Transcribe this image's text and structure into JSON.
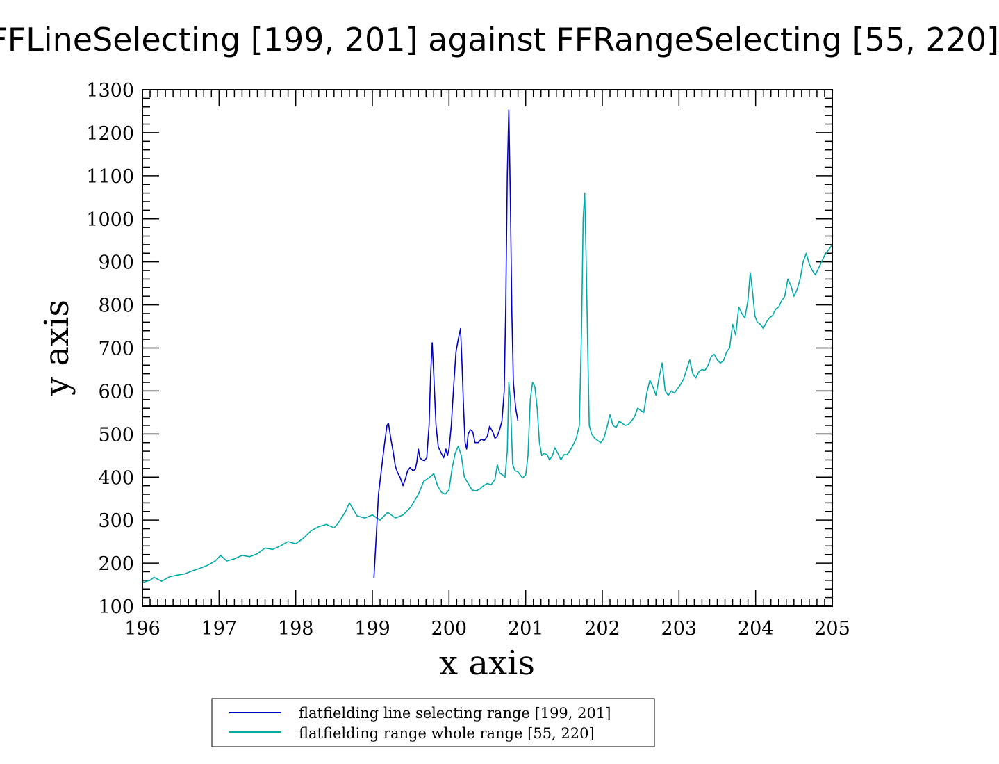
{
  "chart_data": {
    "type": "line",
    "title": "FFLineSelecting [199, 201] against FFRangeSelecting [55, 220]",
    "xlabel": "x axis",
    "ylabel": "y axis",
    "xlim": [
      196,
      205
    ],
    "ylim": [
      100,
      1300
    ],
    "xticks": [
      "196",
      "197",
      "198",
      "199",
      "200",
      "201",
      "202",
      "203",
      "204",
      "205"
    ],
    "yticks": [
      "100",
      "200",
      "300",
      "400",
      "500",
      "600",
      "700",
      "800",
      "900",
      "1000",
      "1100",
      "1200",
      "1300"
    ],
    "legend_position": "bottom-center",
    "grid": false,
    "series": [
      {
        "name": "flatfielding line selecting range [199, 201]",
        "color": "#0000cc",
        "points": [
          [
            199.02,
            165
          ],
          [
            199.05,
            260
          ],
          [
            199.08,
            360
          ],
          [
            199.12,
            420
          ],
          [
            199.16,
            480
          ],
          [
            199.19,
            520
          ],
          [
            199.21,
            525
          ],
          [
            199.24,
            490
          ],
          [
            199.27,
            460
          ],
          [
            199.3,
            425
          ],
          [
            199.33,
            410
          ],
          [
            199.36,
            400
          ],
          [
            199.4,
            380
          ],
          [
            199.43,
            395
          ],
          [
            199.46,
            415
          ],
          [
            199.49,
            422
          ],
          [
            199.53,
            415
          ],
          [
            199.56,
            418
          ],
          [
            199.58,
            435
          ],
          [
            199.6,
            465
          ],
          [
            199.62,
            445
          ],
          [
            199.65,
            440
          ],
          [
            199.68,
            438
          ],
          [
            199.71,
            445
          ],
          [
            199.74,
            520
          ],
          [
            199.76,
            640
          ],
          [
            199.78,
            712
          ],
          [
            199.8,
            640
          ],
          [
            199.83,
            520
          ],
          [
            199.86,
            470
          ],
          [
            199.9,
            455
          ],
          [
            199.93,
            445
          ],
          [
            199.96,
            465
          ],
          [
            199.98,
            450
          ],
          [
            200.0,
            465
          ],
          [
            200.03,
            520
          ],
          [
            200.06,
            610
          ],
          [
            200.09,
            690
          ],
          [
            200.12,
            720
          ],
          [
            200.15,
            745
          ],
          [
            200.17,
            660
          ],
          [
            200.19,
            560
          ],
          [
            200.21,
            480
          ],
          [
            200.23,
            465
          ],
          [
            200.25,
            500
          ],
          [
            200.28,
            510
          ],
          [
            200.31,
            505
          ],
          [
            200.34,
            480
          ],
          [
            200.38,
            480
          ],
          [
            200.42,
            488
          ],
          [
            200.46,
            485
          ],
          [
            200.5,
            495
          ],
          [
            200.53,
            518
          ],
          [
            200.57,
            505
          ],
          [
            200.6,
            490
          ],
          [
            200.63,
            495
          ],
          [
            200.66,
            510
          ],
          [
            200.69,
            530
          ],
          [
            200.72,
            600
          ],
          [
            200.74,
            800
          ],
          [
            200.76,
            1100
          ],
          [
            200.78,
            1253
          ],
          [
            200.8,
            1050
          ],
          [
            200.82,
            780
          ],
          [
            200.84,
            620
          ],
          [
            200.87,
            560
          ],
          [
            200.9,
            530
          ]
        ]
      },
      {
        "name": "flatfielding range whole range [55, 220]",
        "color": "#00aaaa",
        "points": [
          [
            196.0,
            155
          ],
          [
            196.1,
            160
          ],
          [
            196.15,
            167
          ],
          [
            196.25,
            158
          ],
          [
            196.35,
            168
          ],
          [
            196.45,
            172
          ],
          [
            196.55,
            175
          ],
          [
            196.65,
            182
          ],
          [
            196.75,
            188
          ],
          [
            196.85,
            195
          ],
          [
            196.95,
            205
          ],
          [
            197.02,
            218
          ],
          [
            197.1,
            205
          ],
          [
            197.2,
            210
          ],
          [
            197.3,
            218
          ],
          [
            197.4,
            215
          ],
          [
            197.5,
            222
          ],
          [
            197.6,
            235
          ],
          [
            197.7,
            232
          ],
          [
            197.8,
            240
          ],
          [
            197.9,
            250
          ],
          [
            198.0,
            245
          ],
          [
            198.1,
            258
          ],
          [
            198.2,
            275
          ],
          [
            198.3,
            285
          ],
          [
            198.4,
            290
          ],
          [
            198.5,
            282
          ],
          [
            198.55,
            292
          ],
          [
            198.65,
            320
          ],
          [
            198.7,
            340
          ],
          [
            198.8,
            310
          ],
          [
            198.9,
            305
          ],
          [
            199.0,
            312
          ],
          [
            199.1,
            300
          ],
          [
            199.2,
            318
          ],
          [
            199.3,
            305
          ],
          [
            199.4,
            312
          ],
          [
            199.5,
            330
          ],
          [
            199.6,
            360
          ],
          [
            199.67,
            390
          ],
          [
            199.75,
            400
          ],
          [
            199.8,
            408
          ],
          [
            199.85,
            380
          ],
          [
            199.9,
            365
          ],
          [
            199.95,
            360
          ],
          [
            200.0,
            370
          ],
          [
            200.04,
            420
          ],
          [
            200.08,
            455
          ],
          [
            200.12,
            472
          ],
          [
            200.16,
            450
          ],
          [
            200.2,
            400
          ],
          [
            200.25,
            385
          ],
          [
            200.3,
            370
          ],
          [
            200.35,
            368
          ],
          [
            200.4,
            372
          ],
          [
            200.45,
            380
          ],
          [
            200.5,
            385
          ],
          [
            200.55,
            382
          ],
          [
            200.6,
            395
          ],
          [
            200.63,
            428
          ],
          [
            200.66,
            410
          ],
          [
            200.7,
            405
          ],
          [
            200.73,
            400
          ],
          [
            200.76,
            460
          ],
          [
            200.78,
            620
          ],
          [
            200.8,
            580
          ],
          [
            200.83,
            430
          ],
          [
            200.86,
            415
          ],
          [
            200.9,
            412
          ],
          [
            200.93,
            405
          ],
          [
            200.96,
            398
          ],
          [
            201.0,
            405
          ],
          [
            201.03,
            450
          ],
          [
            201.06,
            580
          ],
          [
            201.09,
            620
          ],
          [
            201.12,
            610
          ],
          [
            201.15,
            560
          ],
          [
            201.18,
            480
          ],
          [
            201.21,
            450
          ],
          [
            201.24,
            455
          ],
          [
            201.28,
            452
          ],
          [
            201.31,
            440
          ],
          [
            201.35,
            450
          ],
          [
            201.38,
            468
          ],
          [
            201.42,
            455
          ],
          [
            201.46,
            440
          ],
          [
            201.5,
            452
          ],
          [
            201.54,
            452
          ],
          [
            201.58,
            462
          ],
          [
            201.62,
            475
          ],
          [
            201.66,
            490
          ],
          [
            201.7,
            520
          ],
          [
            201.73,
            750
          ],
          [
            201.75,
            1000
          ],
          [
            201.77,
            1060
          ],
          [
            201.79,
            900
          ],
          [
            201.81,
            700
          ],
          [
            201.83,
            520
          ],
          [
            201.86,
            500
          ],
          [
            201.9,
            490
          ],
          [
            201.94,
            485
          ],
          [
            201.98,
            480
          ],
          [
            202.02,
            490
          ],
          [
            202.06,
            515
          ],
          [
            202.1,
            545
          ],
          [
            202.14,
            520
          ],
          [
            202.18,
            515
          ],
          [
            202.22,
            530
          ],
          [
            202.26,
            525
          ],
          [
            202.3,
            520
          ],
          [
            202.34,
            522
          ],
          [
            202.38,
            530
          ],
          [
            202.42,
            540
          ],
          [
            202.46,
            560
          ],
          [
            202.5,
            555
          ],
          [
            202.54,
            550
          ],
          [
            202.58,
            595
          ],
          [
            202.62,
            625
          ],
          [
            202.66,
            610
          ],
          [
            202.7,
            590
          ],
          [
            202.74,
            630
          ],
          [
            202.78,
            665
          ],
          [
            202.82,
            600
          ],
          [
            202.86,
            590
          ],
          [
            202.9,
            600
          ],
          [
            202.94,
            595
          ],
          [
            202.98,
            605
          ],
          [
            203.02,
            615
          ],
          [
            203.06,
            628
          ],
          [
            203.1,
            650
          ],
          [
            203.14,
            672
          ],
          [
            203.18,
            640
          ],
          [
            203.22,
            630
          ],
          [
            203.26,
            645
          ],
          [
            203.3,
            650
          ],
          [
            203.34,
            648
          ],
          [
            203.38,
            660
          ],
          [
            203.42,
            680
          ],
          [
            203.46,
            685
          ],
          [
            203.5,
            672
          ],
          [
            203.54,
            665
          ],
          [
            203.58,
            670
          ],
          [
            203.62,
            690
          ],
          [
            203.66,
            700
          ],
          [
            203.7,
            755
          ],
          [
            203.74,
            730
          ],
          [
            203.78,
            795
          ],
          [
            203.82,
            780
          ],
          [
            203.86,
            770
          ],
          [
            203.9,
            810
          ],
          [
            203.93,
            875
          ],
          [
            203.96,
            830
          ],
          [
            203.99,
            775
          ],
          [
            204.02,
            760
          ],
          [
            204.06,
            755
          ],
          [
            204.1,
            745
          ],
          [
            204.14,
            760
          ],
          [
            204.18,
            770
          ],
          [
            204.22,
            775
          ],
          [
            204.26,
            790
          ],
          [
            204.3,
            795
          ],
          [
            204.34,
            810
          ],
          [
            204.38,
            820
          ],
          [
            204.42,
            860
          ],
          [
            204.46,
            845
          ],
          [
            204.5,
            820
          ],
          [
            204.54,
            835
          ],
          [
            204.58,
            860
          ],
          [
            204.62,
            900
          ],
          [
            204.66,
            920
          ],
          [
            204.7,
            895
          ],
          [
            204.74,
            880
          ],
          [
            204.78,
            870
          ],
          [
            204.82,
            885
          ],
          [
            204.86,
            900
          ],
          [
            204.9,
            915
          ],
          [
            204.94,
            925
          ],
          [
            204.98,
            935
          ],
          [
            205.0,
            940
          ]
        ]
      }
    ]
  }
}
